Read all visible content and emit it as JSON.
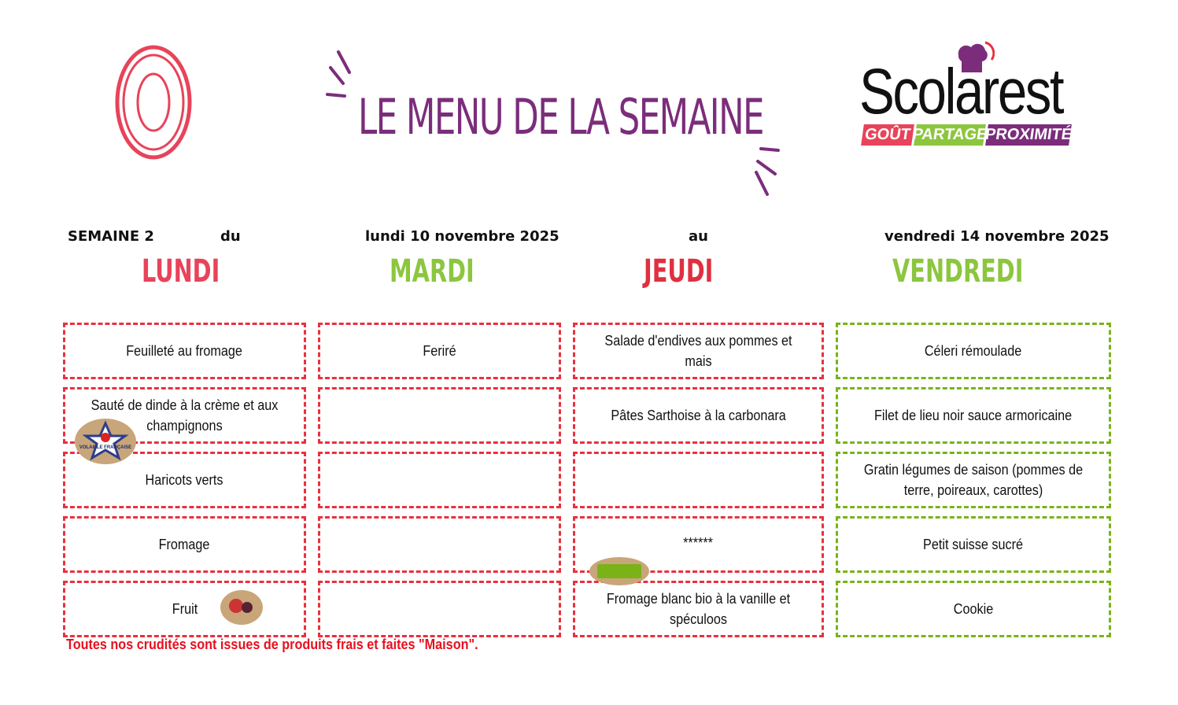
{
  "header": {
    "title": "LE MENU DE LA SEMAINE"
  },
  "logo": {
    "name": "Scolarest",
    "tags": [
      "GOÛT",
      "PARTAGE",
      "PROXIMITÉ"
    ]
  },
  "week": {
    "label": "SEMAINE 2",
    "du": "du",
    "start": "lundi 10 novembre 2025",
    "au": "au",
    "end": "vendredi 14 novembre 2025"
  },
  "days": [
    {
      "name": "LUNDI",
      "color": "#e8435a",
      "items": [
        "Feuilleté au fromage",
        "Sauté de dinde à la crème et aux champignons",
        "Haricots verts",
        "Fromage",
        "Fruit"
      ]
    },
    {
      "name": "MARDI",
      "color": "#8cc63f",
      "items": [
        "Feriré",
        "",
        "",
        "",
        ""
      ]
    },
    {
      "name": "JEUDI",
      "color": "#e03040",
      "items": [
        "Salade d'endives aux pommes et mais",
        "Pâtes Sarthoise à la carbonara",
        "",
        "******",
        "Fromage blanc bio à la vanille et spéculoos"
      ]
    },
    {
      "name": "VENDREDI",
      "color": "#8cc63f",
      "items": [
        "Céleri rémoulade",
        "Filet de lieu noir sauce armoricaine",
        "Gratin légumes de saison (pommes de terre, poireaux, carottes)",
        "Petit suisse sucré",
        "Cookie"
      ]
    }
  ],
  "badges": {
    "volaille": "VOLAILLE FRANÇAISE",
    "frais": "FRAIS"
  },
  "note": "Toutes nos crudités sont issues de produits frais et faites \"Maison\"."
}
